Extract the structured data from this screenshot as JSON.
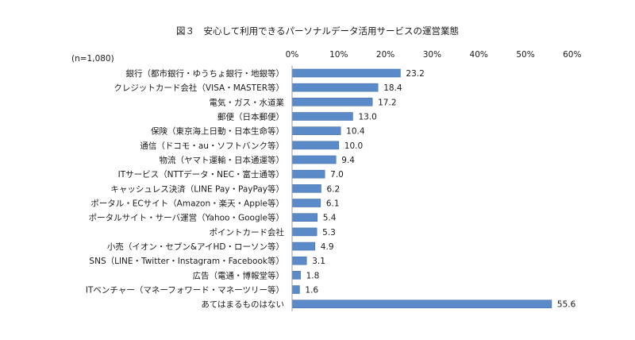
{
  "chart_data": {
    "type": "bar",
    "orientation": "horizontal",
    "title": "図３　安心して利用できるパーソナルデータ活用サービスの運営業態",
    "note": "(n=1,080)",
    "categories": [
      "銀行（都市銀行・ゆうちょ銀行・地銀等）",
      "クレジットカード会社（VISA・MASTER等）",
      "電気・ガス・水道業",
      "郵便（日本郵便）",
      "保険（東京海上日動・日本生命等）",
      "通信（ドコモ・au・ソフトバンク等）",
      "物流（ヤマト運輸・日本通運等）",
      "ITサービス（NTTデータ・NEC・富士通等）",
      "キャッシュレス決済（LINE Pay・PayPay等）",
      "ポータル・ECサイト（Amazon・楽天・Apple等）",
      "ポータルサイト・サーバ運営（Yahoo・Google等）",
      "ポイントカード会社",
      "小売（イオン・セブン&アイHD・ローソン等）",
      "SNS（LINE・Twitter・Instagram・Facebook等）",
      "広告（電通・博報堂等）",
      "ITベンチャー（マネーフォワード・マネーツリー等）",
      "あてはまるものはない"
    ],
    "values": [
      23.2,
      18.4,
      17.2,
      13.0,
      10.4,
      10.0,
      9.4,
      7.0,
      6.2,
      6.1,
      5.4,
      5.3,
      4.9,
      3.1,
      1.8,
      1.6,
      55.6
    ],
    "value_labels": [
      "23.2",
      "18.4",
      "17.2",
      "13.0",
      "10.4",
      "10.0",
      "9.4",
      "7.0",
      "6.2",
      "6.1",
      "5.4",
      "5.3",
      "4.9",
      "3.1",
      "1.8",
      "1.6",
      "55.6"
    ],
    "xlim": [
      0,
      60
    ],
    "xticks": [
      0,
      10,
      20,
      30,
      40,
      50,
      60
    ],
    "xtick_labels": [
      "0%",
      "10%",
      "20%",
      "30%",
      "40%",
      "50%",
      "60%"
    ],
    "axis_position": "top",
    "grid": false,
    "legend": "none",
    "bar_color": "#5b8ac8"
  }
}
